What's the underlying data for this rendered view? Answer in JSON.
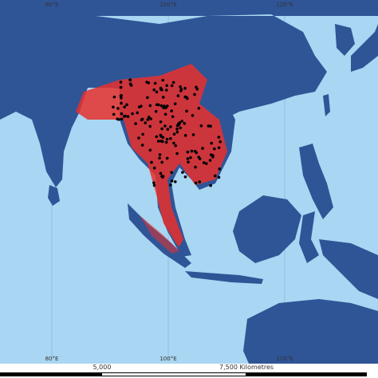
{
  "graticule": {
    "top_labels": [
      "80°E",
      "100°E",
      "120°E"
    ],
    "bottom_labels": [
      "80°E",
      "100°E",
      "120°E"
    ]
  },
  "scale_bar": {
    "labels": [
      "5,000",
      "7,500  Kilometres"
    ]
  }
}
